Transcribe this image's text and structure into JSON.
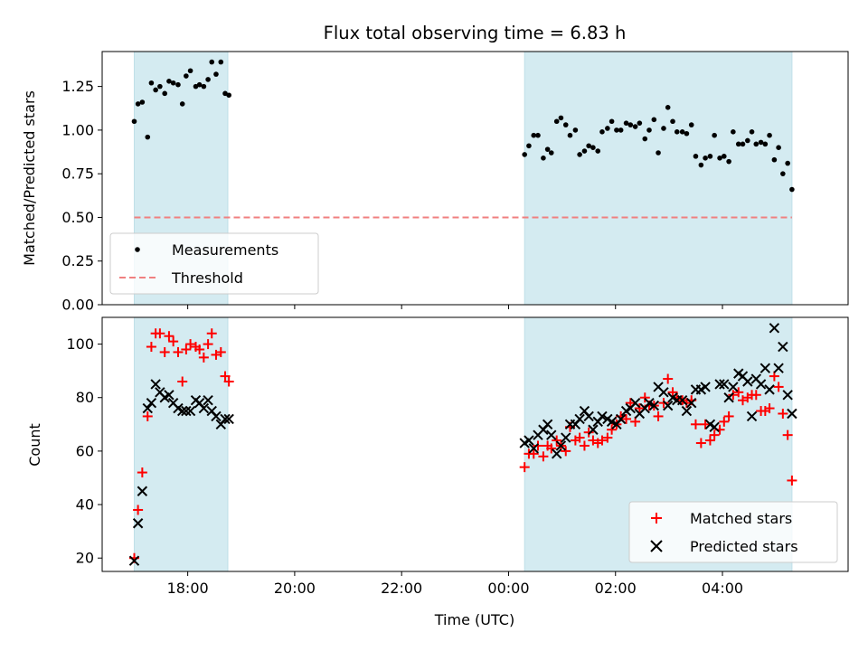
{
  "chart_data": {
    "title": "Flux total observing time = 6.83 h",
    "xlabel": "Time (UTC)",
    "xlim": [
      16.4,
      30.35
    ],
    "xticks": [
      18,
      20,
      22,
      24,
      26,
      28
    ],
    "xtick_labels": [
      "18:00",
      "20:00",
      "22:00",
      "00:00",
      "02:00",
      "04:00"
    ],
    "shaded_spans": [
      [
        17.0,
        18.75
      ],
      [
        24.3,
        29.3
      ]
    ],
    "shade_color": "#d4ebf1",
    "top": {
      "type": "scatter",
      "ylabel": "Matched/Predicted stars",
      "ylim": [
        0.0,
        1.45
      ],
      "yticks": [
        0.0,
        0.25,
        0.5,
        0.75,
        1.0,
        1.25
      ],
      "ytick_labels": [
        "0.00",
        "0.25",
        "0.50",
        "0.75",
        "1.00",
        "1.25"
      ],
      "legend": {
        "position": "lower-left",
        "entries": [
          "Measurements",
          "Threshold"
        ]
      },
      "threshold": {
        "name": "Threshold",
        "value": 0.5,
        "x_range": [
          17.0,
          29.3
        ],
        "color": "#f08080"
      },
      "measurements": {
        "name": "Measurements",
        "color": "#000000",
        "x": [
          17.0,
          17.07,
          17.15,
          17.25,
          17.32,
          17.4,
          17.48,
          17.57,
          17.65,
          17.73,
          17.82,
          17.9,
          17.97,
          18.05,
          18.15,
          18.22,
          18.3,
          18.38,
          18.45,
          18.53,
          18.62,
          18.7,
          18.77,
          24.3,
          24.38,
          24.47,
          24.55,
          24.65,
          24.73,
          24.8,
          24.9,
          24.98,
          25.07,
          25.15,
          25.25,
          25.33,
          25.42,
          25.5,
          25.58,
          25.67,
          25.75,
          25.85,
          25.93,
          26.02,
          26.1,
          26.2,
          26.28,
          26.37,
          26.45,
          26.55,
          26.63,
          26.72,
          26.8,
          26.9,
          26.98,
          27.07,
          27.15,
          27.25,
          27.33,
          27.42,
          27.5,
          27.6,
          27.68,
          27.77,
          27.85,
          27.95,
          28.03,
          28.12,
          28.2,
          28.3,
          28.38,
          28.47,
          28.55,
          28.63,
          28.72,
          28.8,
          28.88,
          28.97,
          29.05,
          29.13,
          29.22,
          29.3
        ],
        "y": [
          1.05,
          1.15,
          1.16,
          0.96,
          1.27,
          1.23,
          1.25,
          1.21,
          1.28,
          1.27,
          1.26,
          1.15,
          1.31,
          1.34,
          1.25,
          1.26,
          1.25,
          1.29,
          1.39,
          1.32,
          1.39,
          1.21,
          1.2,
          0.86,
          0.91,
          0.97,
          0.97,
          0.84,
          0.89,
          0.87,
          1.05,
          1.07,
          1.03,
          0.97,
          1.0,
          0.86,
          0.88,
          0.91,
          0.9,
          0.88,
          0.99,
          1.01,
          1.05,
          1.0,
          1.0,
          1.04,
          1.03,
          1.02,
          1.04,
          0.95,
          1.0,
          1.06,
          0.87,
          1.01,
          1.13,
          1.05,
          0.99,
          0.99,
          0.98,
          1.03,
          0.85,
          0.8,
          0.84,
          0.85,
          0.97,
          0.84,
          0.85,
          0.82,
          0.99,
          0.92,
          0.92,
          0.94,
          0.99,
          0.92,
          0.93,
          0.92,
          0.97,
          0.83,
          0.9,
          0.75,
          0.81,
          0.66
        ]
      }
    },
    "bottom": {
      "type": "scatter",
      "ylabel": "Count",
      "ylim": [
        15,
        110
      ],
      "yticks": [
        20,
        40,
        60,
        80,
        100
      ],
      "ytick_labels": [
        "20",
        "40",
        "60",
        "80",
        "100"
      ],
      "legend": {
        "position": "lower-right",
        "entries": [
          "Matched stars",
          "Predicted stars"
        ]
      },
      "series": [
        {
          "name": "Matched stars",
          "marker": "plus",
          "color": "#ff0000",
          "x": [
            17.0,
            17.07,
            17.15,
            17.25,
            17.32,
            17.4,
            17.48,
            17.57,
            17.65,
            17.73,
            17.82,
            17.9,
            17.97,
            18.05,
            18.15,
            18.22,
            18.3,
            18.38,
            18.45,
            18.53,
            18.62,
            18.7,
            18.77,
            24.3,
            24.38,
            24.47,
            24.55,
            24.65,
            24.73,
            24.8,
            24.9,
            24.98,
            25.07,
            25.15,
            25.25,
            25.33,
            25.42,
            25.5,
            25.58,
            25.67,
            25.75,
            25.85,
            25.93,
            26.02,
            26.1,
            26.2,
            26.28,
            26.37,
            26.45,
            26.55,
            26.63,
            26.72,
            26.8,
            26.9,
            26.98,
            27.07,
            27.15,
            27.25,
            27.33,
            27.42,
            27.5,
            27.6,
            27.68,
            27.77,
            27.85,
            27.95,
            28.03,
            28.12,
            28.2,
            28.3,
            28.38,
            28.47,
            28.55,
            28.63,
            28.72,
            28.8,
            28.88,
            28.97,
            29.05,
            29.13,
            29.22,
            29.3
          ],
          "y": [
            20,
            38,
            52,
            73,
            99,
            104,
            104,
            97,
            103,
            101,
            97,
            86,
            98,
            100,
            99,
            98,
            95,
            100,
            104,
            96,
            97,
            88,
            86,
            54,
            59,
            59,
            62,
            58,
            62,
            61,
            64,
            62,
            60,
            69,
            64,
            65,
            62,
            67,
            64,
            63,
            64,
            65,
            68,
            70,
            73,
            72,
            78,
            71,
            76,
            80,
            77,
            77,
            73,
            78,
            87,
            82,
            80,
            79,
            78,
            79,
            70,
            63,
            70,
            64,
            66,
            68,
            71,
            73,
            81,
            82,
            79,
            80,
            81,
            81,
            75,
            75,
            76,
            88,
            84,
            74,
            66,
            49
          ]
        },
        {
          "name": "Predicted stars",
          "marker": "x",
          "color": "#000000",
          "x": [
            17.0,
            17.07,
            17.15,
            17.25,
            17.32,
            17.4,
            17.48,
            17.57,
            17.65,
            17.73,
            17.82,
            17.9,
            17.97,
            18.05,
            18.15,
            18.22,
            18.3,
            18.38,
            18.45,
            18.53,
            18.62,
            18.7,
            18.77,
            24.3,
            24.38,
            24.47,
            24.55,
            24.65,
            24.73,
            24.8,
            24.9,
            24.98,
            25.07,
            25.15,
            25.25,
            25.33,
            25.42,
            25.5,
            25.58,
            25.67,
            25.75,
            25.85,
            25.93,
            26.02,
            26.1,
            26.2,
            26.28,
            26.37,
            26.45,
            26.55,
            26.63,
            26.72,
            26.8,
            26.9,
            26.98,
            27.07,
            27.15,
            27.25,
            27.33,
            27.42,
            27.5,
            27.6,
            27.68,
            27.77,
            27.85,
            27.95,
            28.03,
            28.12,
            28.2,
            28.3,
            28.38,
            28.47,
            28.55,
            28.63,
            28.72,
            28.8,
            28.88,
            28.97,
            29.05,
            29.13,
            29.22,
            29.3
          ],
          "y": [
            19,
            33,
            45,
            76,
            78,
            85,
            82,
            80,
            81,
            78,
            76,
            75,
            75,
            75,
            79,
            78,
            76,
            79,
            75,
            73,
            70,
            72,
            72,
            63,
            64,
            61,
            66,
            68,
            70,
            66,
            59,
            62,
            65,
            70,
            70,
            72,
            75,
            73,
            68,
            71,
            73,
            72,
            71,
            70,
            72,
            75,
            76,
            78,
            74,
            76,
            78,
            77,
            84,
            82,
            77,
            80,
            79,
            79,
            75,
            78,
            83,
            83,
            84,
            70,
            69,
            85,
            85,
            80,
            84,
            89,
            88,
            86,
            73,
            87,
            85,
            91,
            83,
            106,
            91,
            99,
            81,
            74
          ]
        }
      ]
    }
  }
}
